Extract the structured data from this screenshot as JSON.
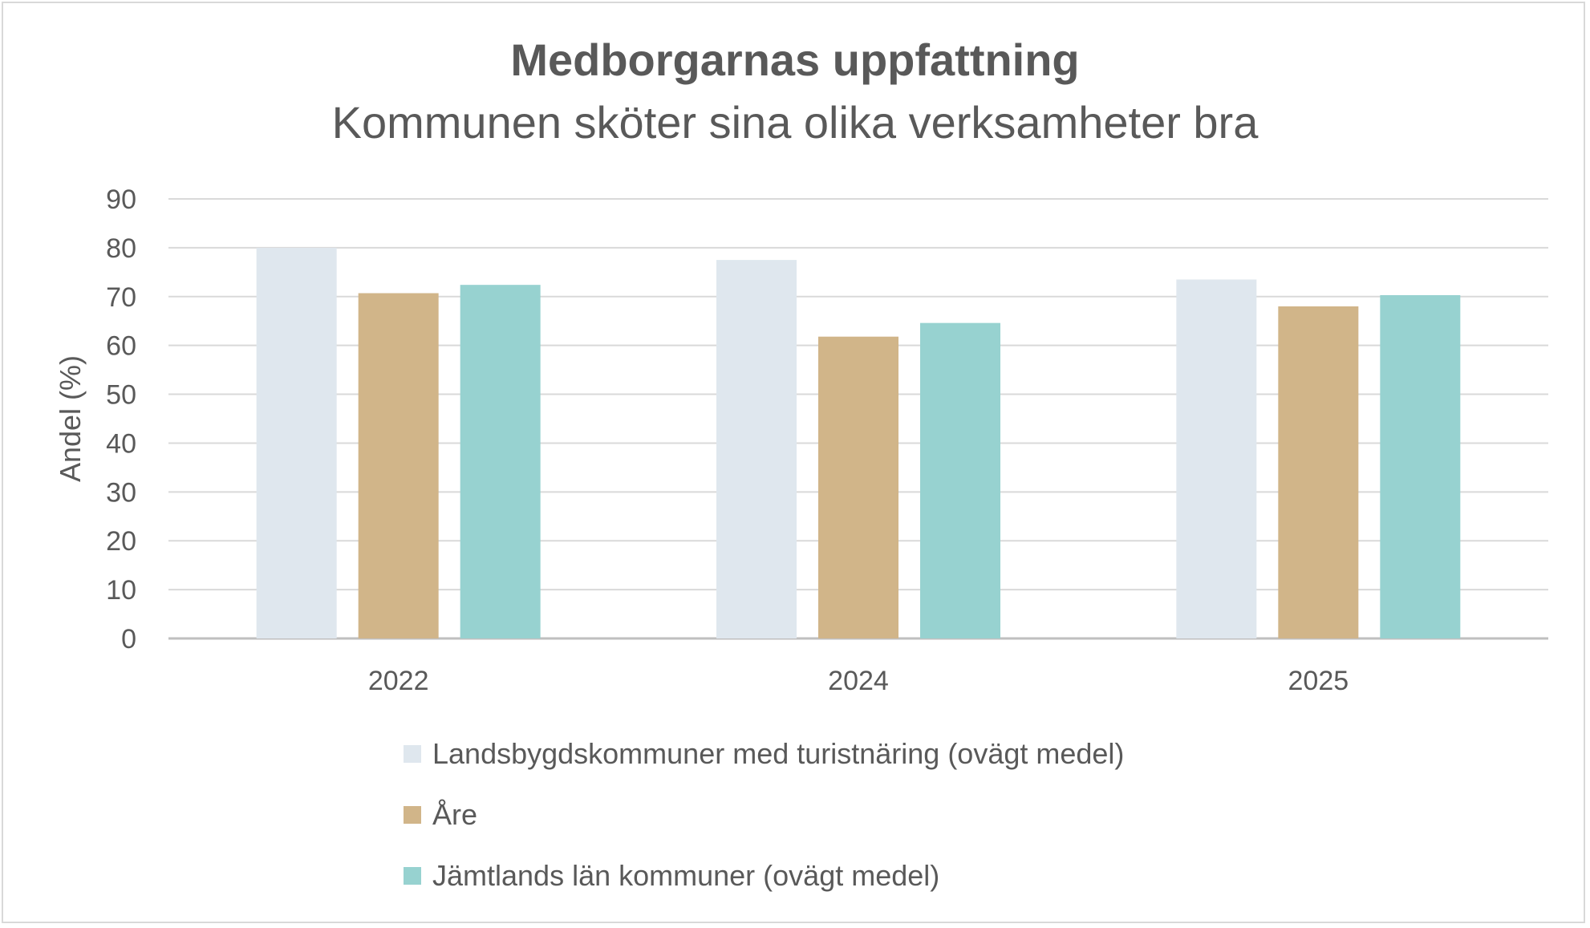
{
  "chart_data": {
    "type": "bar",
    "title": "Medborgarnas uppfattning",
    "subtitle": "Kommunen sköter sina olika verksamheter bra",
    "xlabel": "",
    "ylabel": "Andel (%)",
    "ylim": [
      0,
      90
    ],
    "yticks": [
      "0",
      "10",
      "20",
      "30",
      "40",
      "50",
      "60",
      "70",
      "80",
      "90"
    ],
    "categories": [
      "2022",
      "2024",
      "2025"
    ],
    "grid": true,
    "legend_position": "bottom",
    "series": [
      {
        "name": "Landsbygdskommuner med turistnäring (ovägt medel)",
        "color": "#dfe7ee",
        "values": [
          80,
          77.5,
          73.5
        ]
      },
      {
        "name": "Åre",
        "color": "#d1b589",
        "values": [
          70.7,
          61.8,
          68
        ]
      },
      {
        "name": "Jämtlands län kommuner (ovägt medel)",
        "color": "#97d2d0",
        "values": [
          72.4,
          64.6,
          70.3
        ]
      }
    ]
  }
}
